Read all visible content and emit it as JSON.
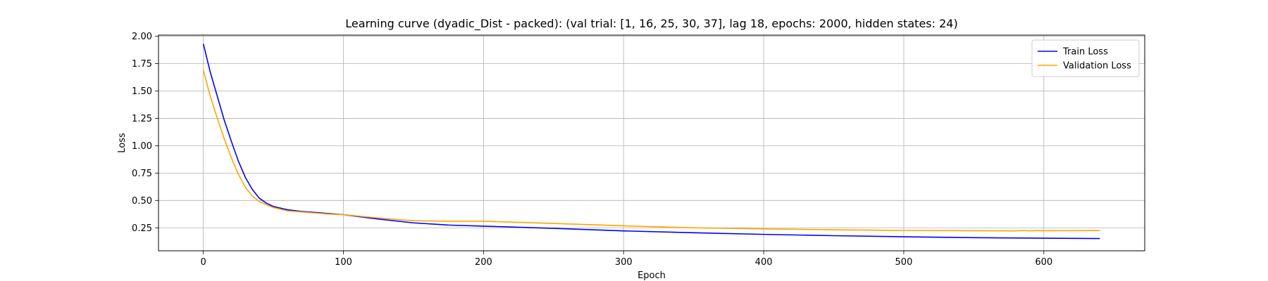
{
  "chart_data": {
    "type": "line",
    "title": "Learning curve (dyadic_Dist - packed): (val trial: [1, 16, 25, 30, 37], lag 18, epochs: 2000, hidden states: 24)",
    "xlabel": "Epoch",
    "ylabel": "Loss",
    "xlim": [
      -32,
      672
    ],
    "ylim": [
      0.04,
      2.01
    ],
    "xticks": [
      0,
      100,
      200,
      300,
      400,
      500,
      600
    ],
    "yticks": [
      0.25,
      0.5,
      0.75,
      1.0,
      1.25,
      1.5,
      1.75,
      2.0
    ],
    "ytick_labels": [
      "0.25",
      "0.50",
      "0.75",
      "1.00",
      "1.25",
      "1.50",
      "1.75",
      "2.00"
    ],
    "grid": true,
    "legend": "top-right",
    "series": [
      {
        "name": "Train Loss",
        "color": "#0000ff",
        "x": [
          0,
          5,
          10,
          15,
          20,
          25,
          30,
          35,
          40,
          45,
          50,
          60,
          70,
          80,
          90,
          100,
          125,
          150,
          175,
          200,
          250,
          300,
          350,
          400,
          450,
          500,
          550,
          600,
          640
        ],
        "y": [
          1.93,
          1.67,
          1.45,
          1.23,
          1.04,
          0.86,
          0.71,
          0.6,
          0.52,
          0.475,
          0.445,
          0.415,
          0.4,
          0.39,
          0.38,
          0.37,
          0.33,
          0.295,
          0.275,
          0.265,
          0.245,
          0.222,
          0.205,
          0.19,
          0.178,
          0.168,
          0.16,
          0.155,
          0.152
        ]
      },
      {
        "name": "Validation Loss",
        "color": "#ffa500",
        "x": [
          0,
          5,
          10,
          15,
          20,
          25,
          30,
          35,
          40,
          45,
          50,
          60,
          70,
          80,
          90,
          100,
          125,
          150,
          175,
          200,
          250,
          300,
          350,
          400,
          450,
          500,
          550,
          580,
          585,
          590,
          595,
          600,
          640
        ],
        "y": [
          1.69,
          1.45,
          1.25,
          1.06,
          0.89,
          0.74,
          0.62,
          0.54,
          0.49,
          0.46,
          0.435,
          0.405,
          0.395,
          0.385,
          0.375,
          0.37,
          0.34,
          0.315,
          0.31,
          0.31,
          0.29,
          0.268,
          0.25,
          0.24,
          0.232,
          0.226,
          0.223,
          0.222,
          0.226,
          0.222,
          0.225,
          0.223,
          0.225
        ]
      }
    ]
  }
}
